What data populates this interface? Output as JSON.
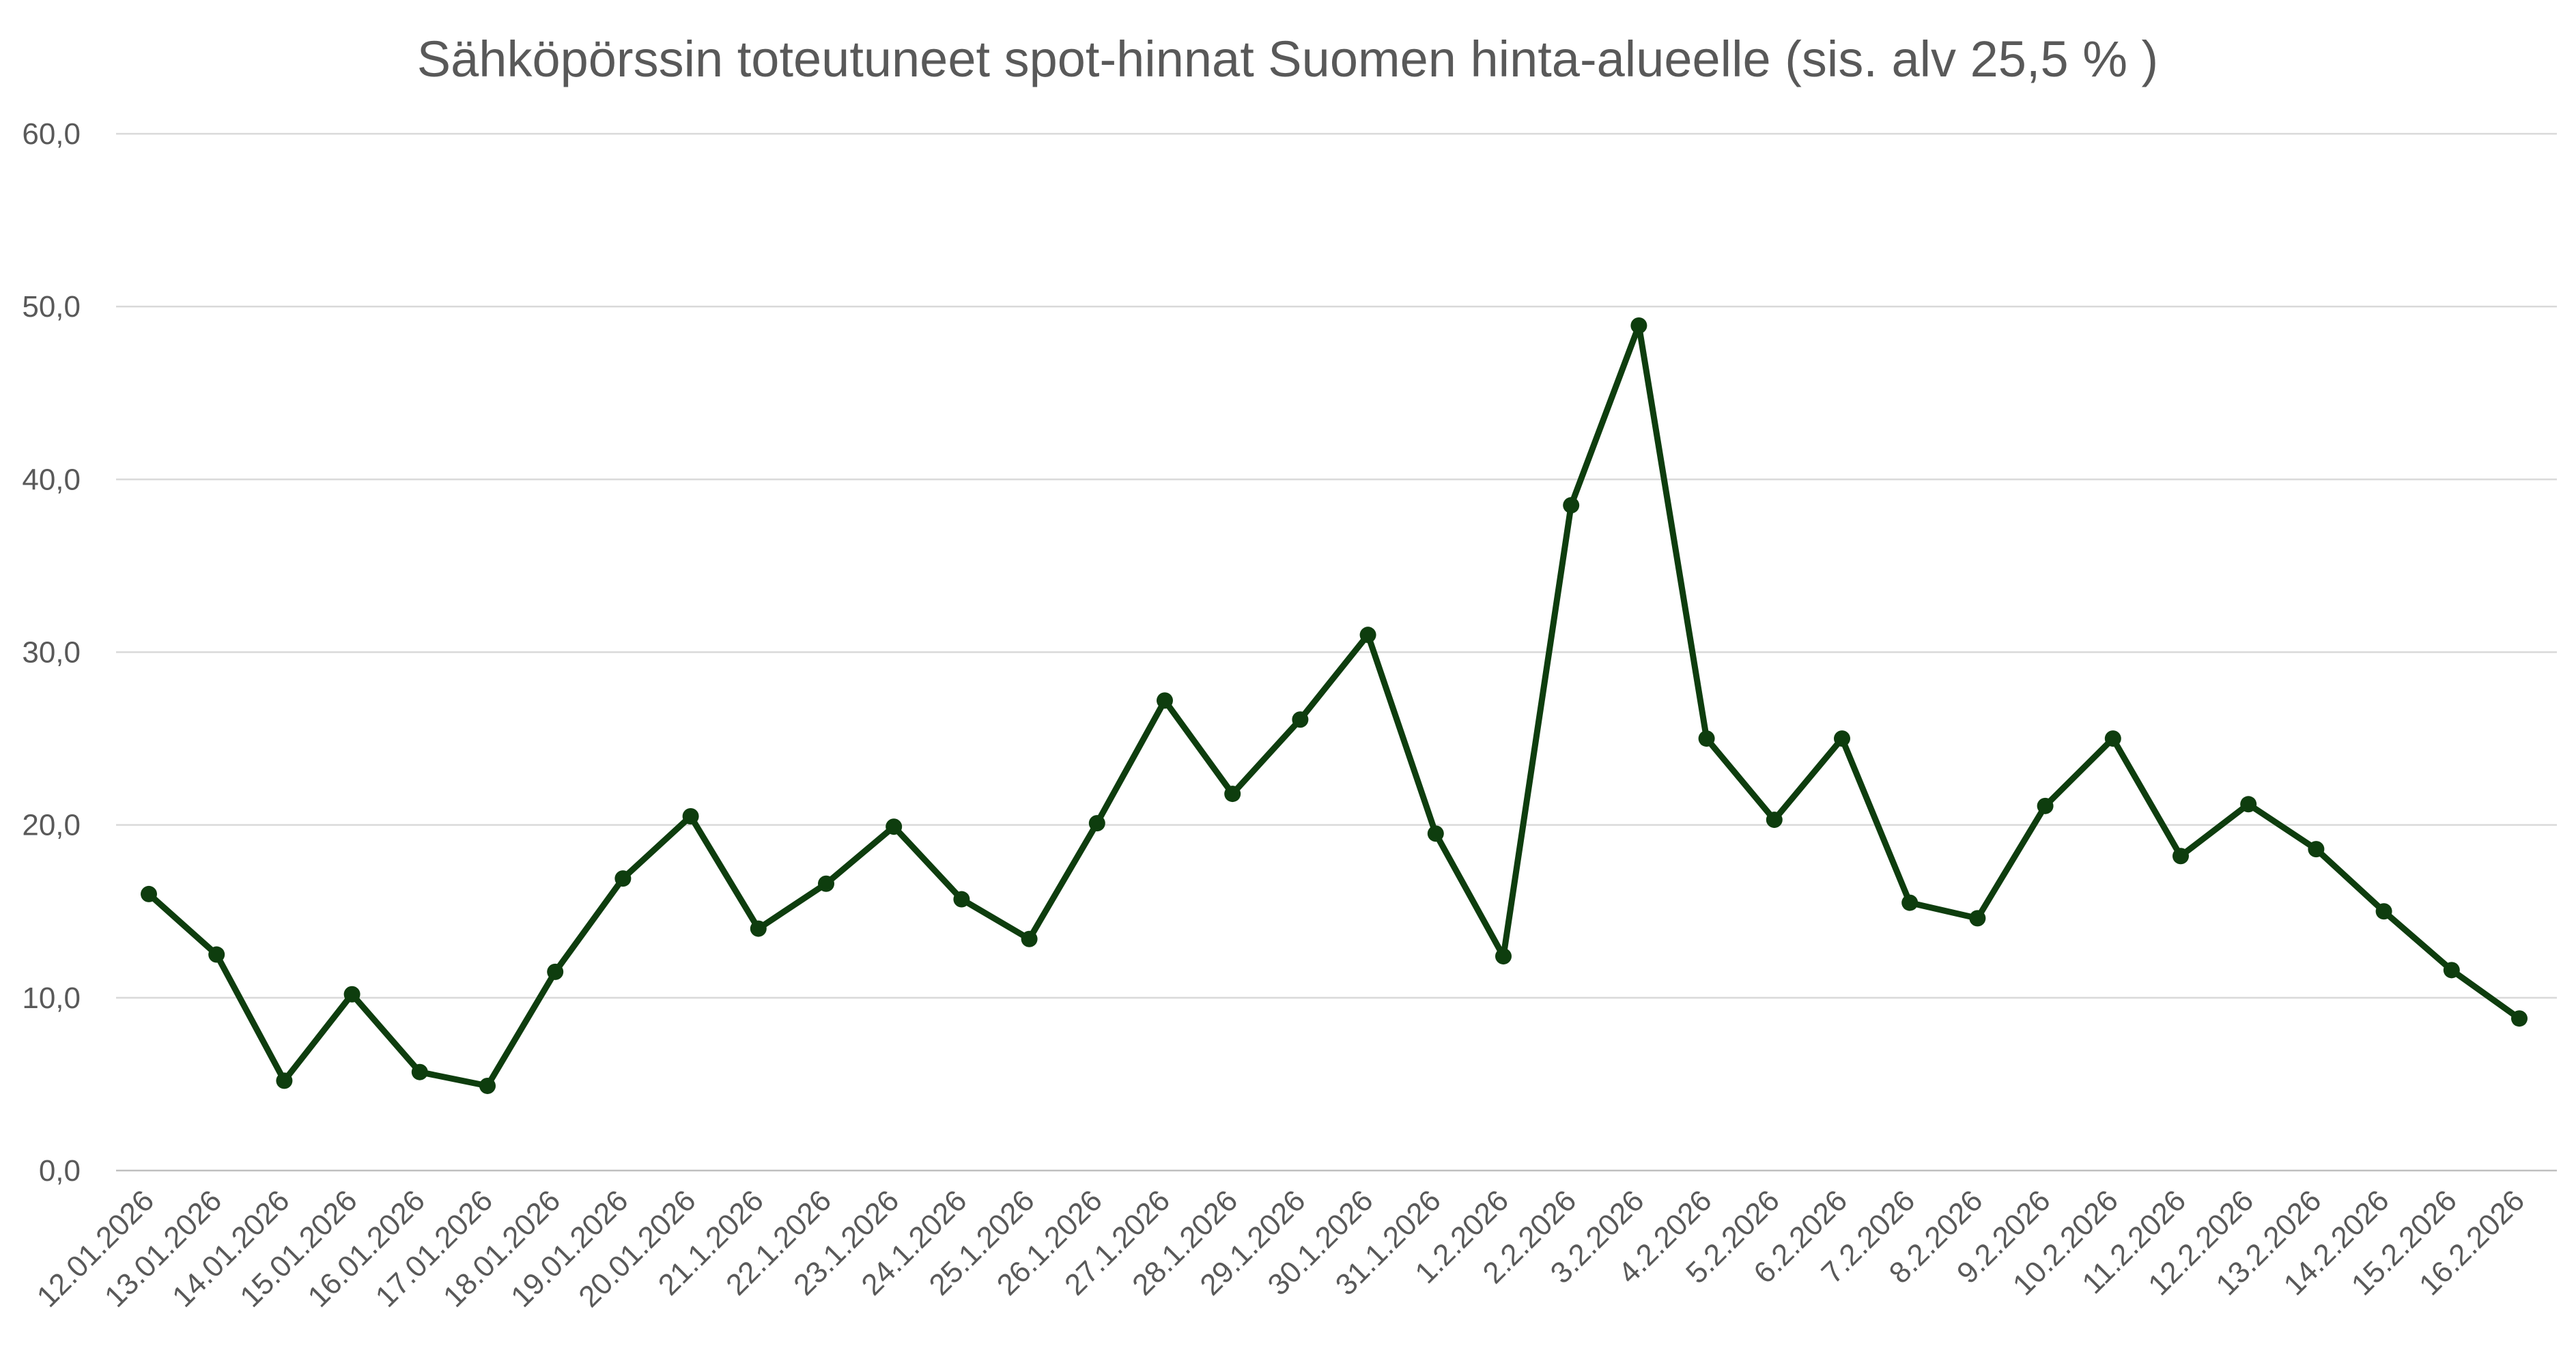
{
  "chart_data": {
    "type": "line",
    "title": "Sähköpörssin toteutuneet spot-hinnat Suomen hinta-alueelle (sis. alv 25,5 % )",
    "xlabel": "",
    "ylabel": "",
    "ylim": [
      0,
      60
    ],
    "y_ticks": [
      "0,0",
      "10,0",
      "20,0",
      "30,0",
      "40,0",
      "50,0",
      "60,0"
    ],
    "y_tick_values": [
      0,
      10,
      20,
      30,
      40,
      50,
      60
    ],
    "grid": true,
    "legend": "none",
    "line_color": "#0e3d0e",
    "categories": [
      "12.01.2026",
      "13.01.2026",
      "14.01.2026",
      "15.01.2026",
      "16.01.2026",
      "17.01.2026",
      "18.01.2026",
      "19.01.2026",
      "20.01.2026",
      "21.1.2026",
      "22.1.2026",
      "23.1.2026",
      "24.1.2026",
      "25.1.2026",
      "26.1.2026",
      "27.1.2026",
      "28.1.2026",
      "29.1.2026",
      "30.1.2026",
      "31.1.2026",
      "1.2.2026",
      "2.2.2026",
      "3.2.2026",
      "4.2.2026",
      "5.2.2026",
      "6.2.2026",
      "7.2.2026",
      "8.2.2026",
      "9.2.2026",
      "10.2.2026",
      "11.2.2026",
      "12.2.2026",
      "13.2.2026",
      "14.2.2026",
      "15.2.2026",
      "16.2.2026"
    ],
    "values": [
      16.0,
      12.5,
      5.2,
      10.2,
      5.7,
      4.9,
      11.5,
      16.9,
      20.5,
      14.0,
      16.6,
      19.9,
      15.7,
      13.4,
      20.1,
      27.2,
      21.8,
      26.1,
      31.0,
      19.5,
      12.4,
      38.5,
      48.9,
      25.0,
      20.3,
      25.0,
      15.5,
      14.6,
      21.1,
      25.0,
      18.2,
      21.2,
      18.6,
      15.0,
      11.6,
      8.8
    ]
  }
}
